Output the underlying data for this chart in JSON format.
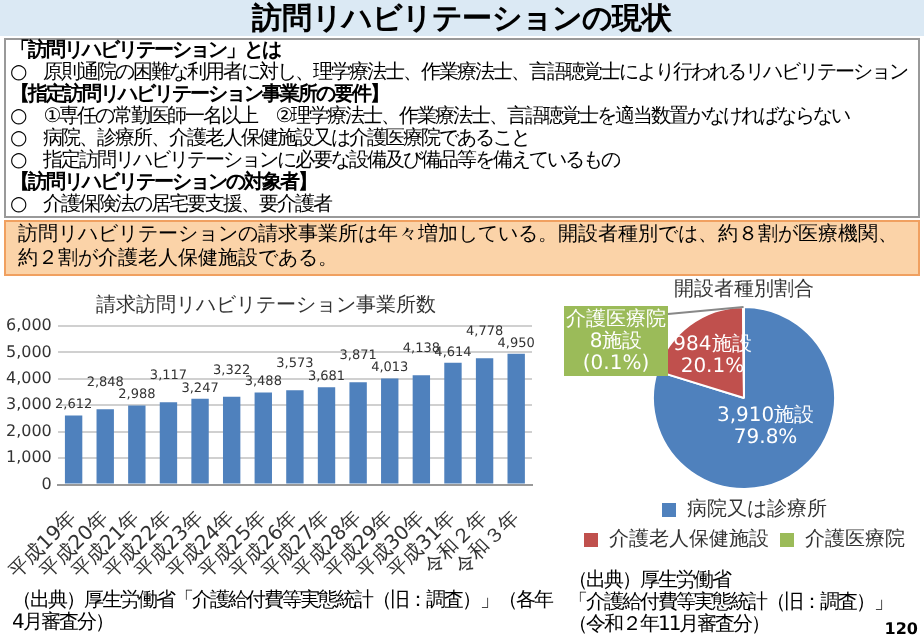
{
  "chart_data": [
    {
      "type": "other",
      "title": "訪問リハビリテーションの現状",
      "subtitle": "訪問リハビリテーションの請求事業所は年々増加している。開設者種別では、約８割が医療機関、約２割が介護老人保健施設である。",
      "annotations": [
        "「訪問リハビリテーション」とは",
        "○　原則通院の困難な利用者に対し、理学療法士、作業療法士、言語聴覚士により行われるリハビリテーション",
        "【指定訪問リハビリテーション事業所の要件】",
        "○　①専任の常勤医師一名以上　②理学療法士、作業療法士、言語聴覚士を適当数置かなければならない",
        "○　病院、診療所、介護老人保健施設又は介護医療院であること",
        "○　指定訪問リハビリテーションに必要な設備及び備品等を備えているもの",
        "【訪問リハビリテーションの対象者】",
        "○　介護保険法の居宅要支援、要介護者",
        "120"
      ]
    },
    {
      "type": "bar",
      "title": "請求訪問リハビリテーション事業所数",
      "categories": [
        "平成19年",
        "平成20年",
        "平成21年",
        "平成22年",
        "平成23年",
        "平成24年",
        "平成25年",
        "平成26年",
        "平成27年",
        "平成28年",
        "平成29年",
        "平成30年",
        "平成31年",
        "令和２年",
        "令和３年"
      ],
      "values": [
        2612,
        2848,
        2988,
        3117,
        3247,
        3322,
        3488,
        3573,
        3681,
        3871,
        4013,
        4138,
        4614,
        4778,
        4950
      ],
      "value_labels": [
        "2,612",
        "2,848",
        "2,988",
        "3,117",
        "3,247",
        "3,322",
        "3,488",
        "3,573",
        "3,681",
        "3,871",
        "4,013",
        "4,138",
        "4,614",
        "4,778",
        "4,950"
      ],
      "color": "#4f81bd",
      "ylim": [
        0,
        6000
      ],
      "yticks": [
        0,
        {
          "value": 1000,
          "label": "1,000"
        },
        {
          "value": 2000,
          "label": "2,000"
        },
        {
          "value": 3000,
          "label": "3,000"
        },
        {
          "value": 4000,
          "label": "4,000"
        },
        {
          "value": 5000,
          "label": "5,000"
        },
        {
          "value": 6000,
          "label": "6,000"
        }
      ],
      "grid": "y",
      "annotations": [
        "（出典）厚生労働省「介護給付費等実態統計（旧：調査）」（各年4月審査分）"
      ]
    },
    {
      "type": "pie",
      "title": "開設者種別割合",
      "categories": [
        "病院又は診療所",
        "介護老人保健施設",
        "介護医療院"
      ],
      "values": [
        3910,
        984,
        8
      ],
      "colors": [
        "#4f81bd",
        "#c0504d",
        "#9bbb59"
      ],
      "value_labels": [
        "3,910施設\n79.8%",
        "984施設\n20.1%",
        "介護医療院\n8施設\n(0.1%)"
      ],
      "legend": "bottom",
      "annotations": [
        "（出典）厚生労働省",
        "「介護給付費等実態統計（旧：調査）」",
        "（令和２年11月審査分）"
      ]
    }
  ]
}
